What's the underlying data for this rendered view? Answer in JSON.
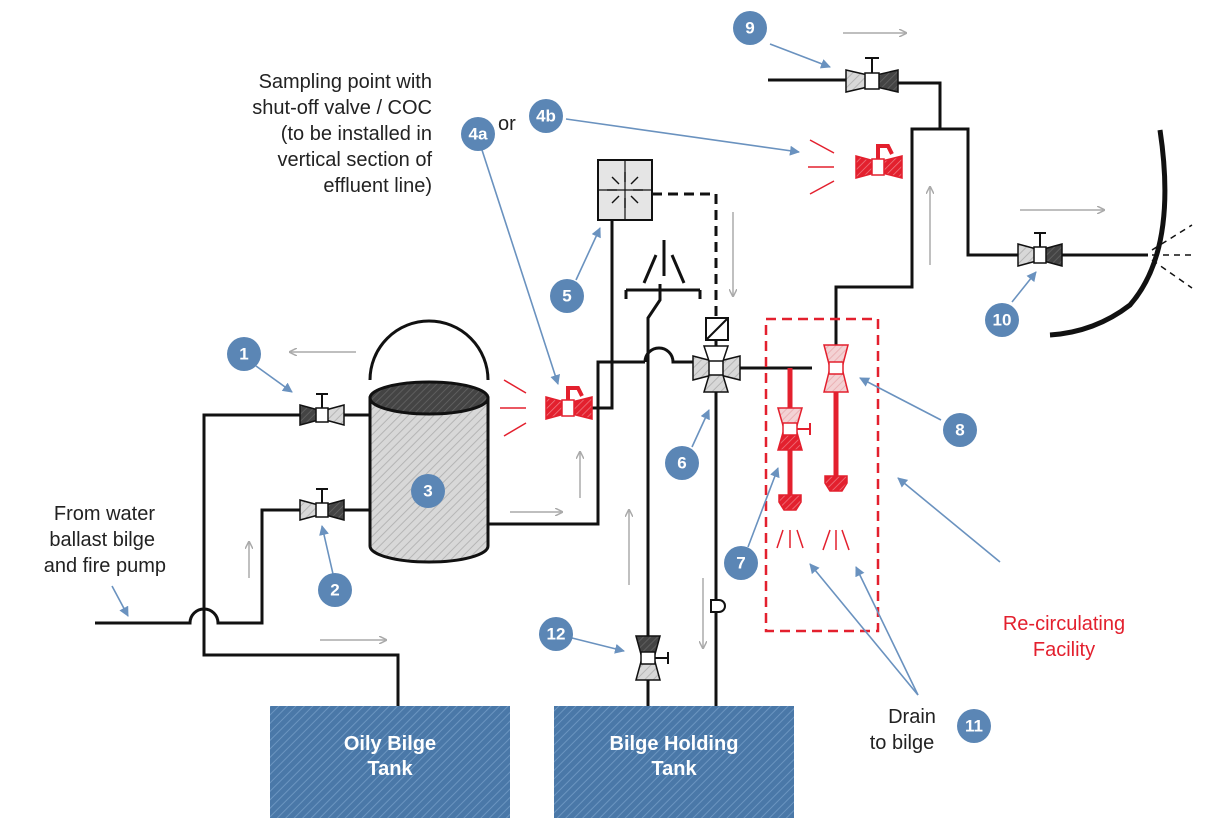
{
  "labels": {
    "sampling_point": [
      "Sampling point with",
      "shut-off valve / COC",
      "(to be installed in",
      "vertical section of",
      "effluent line)"
    ],
    "or": "or",
    "from_water": [
      "From water",
      "ballast bilge",
      "and fire pump"
    ],
    "recirculating": [
      "Re-circulating",
      "Facility"
    ],
    "drain": [
      "Drain",
      "to bilge"
    ]
  },
  "tanks": {
    "oily_bilge": [
      "Oily Bilge",
      "Tank"
    ],
    "bilge_holding": [
      "Bilge Holding",
      "Tank"
    ]
  },
  "badges": {
    "b1": "1",
    "b2": "2",
    "b3": "3",
    "b4a": "4a",
    "b4b": "4b",
    "b5": "5",
    "b6": "6",
    "b7": "7",
    "b8": "8",
    "b9": "9",
    "b10": "10",
    "b11": "11",
    "b12": "12"
  },
  "colors": {
    "badge": "#5b86b5",
    "tank": "#4a78a8",
    "highlight_red": "#e3202e",
    "pipe": "#111111"
  }
}
